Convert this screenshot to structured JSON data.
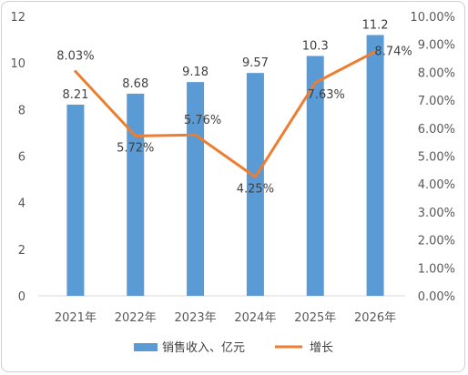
{
  "chart_data": {
    "type": "bar+line",
    "categories": [
      "2021年",
      "2022年",
      "2023年",
      "2024年",
      "2025年",
      "2026年"
    ],
    "series": [
      {
        "name": "销售收入、亿元",
        "type": "bar",
        "axis": "left",
        "values": [
          8.21,
          8.68,
          9.18,
          9.57,
          10.3,
          11.2
        ],
        "labels": [
          "8.21",
          "8.68",
          "9.18",
          "9.57",
          "10.3",
          "11.2"
        ]
      },
      {
        "name": "增长",
        "type": "line",
        "axis": "right",
        "values": [
          8.03,
          5.72,
          5.76,
          4.25,
          7.63,
          8.74
        ],
        "labels": [
          "8.03%",
          "5.72%",
          "5.76%",
          "4.25%",
          "7.63%",
          "8.74%"
        ]
      }
    ],
    "y_left": {
      "min": 0,
      "max": 12,
      "ticks": [
        "0",
        "2",
        "4",
        "6",
        "8",
        "10",
        "12"
      ]
    },
    "y_right": {
      "min": 0,
      "max": 10,
      "ticks": [
        "0.00%",
        "1.00%",
        "2.00%",
        "3.00%",
        "4.00%",
        "5.00%",
        "6.00%",
        "7.00%",
        "8.00%",
        "9.00%",
        "10.00%"
      ]
    },
    "grid": false,
    "legend": "bottom",
    "colors": {
      "bar": "#5b9bd5",
      "line": "#ed7d31",
      "axis": "#d9d9d9"
    }
  }
}
